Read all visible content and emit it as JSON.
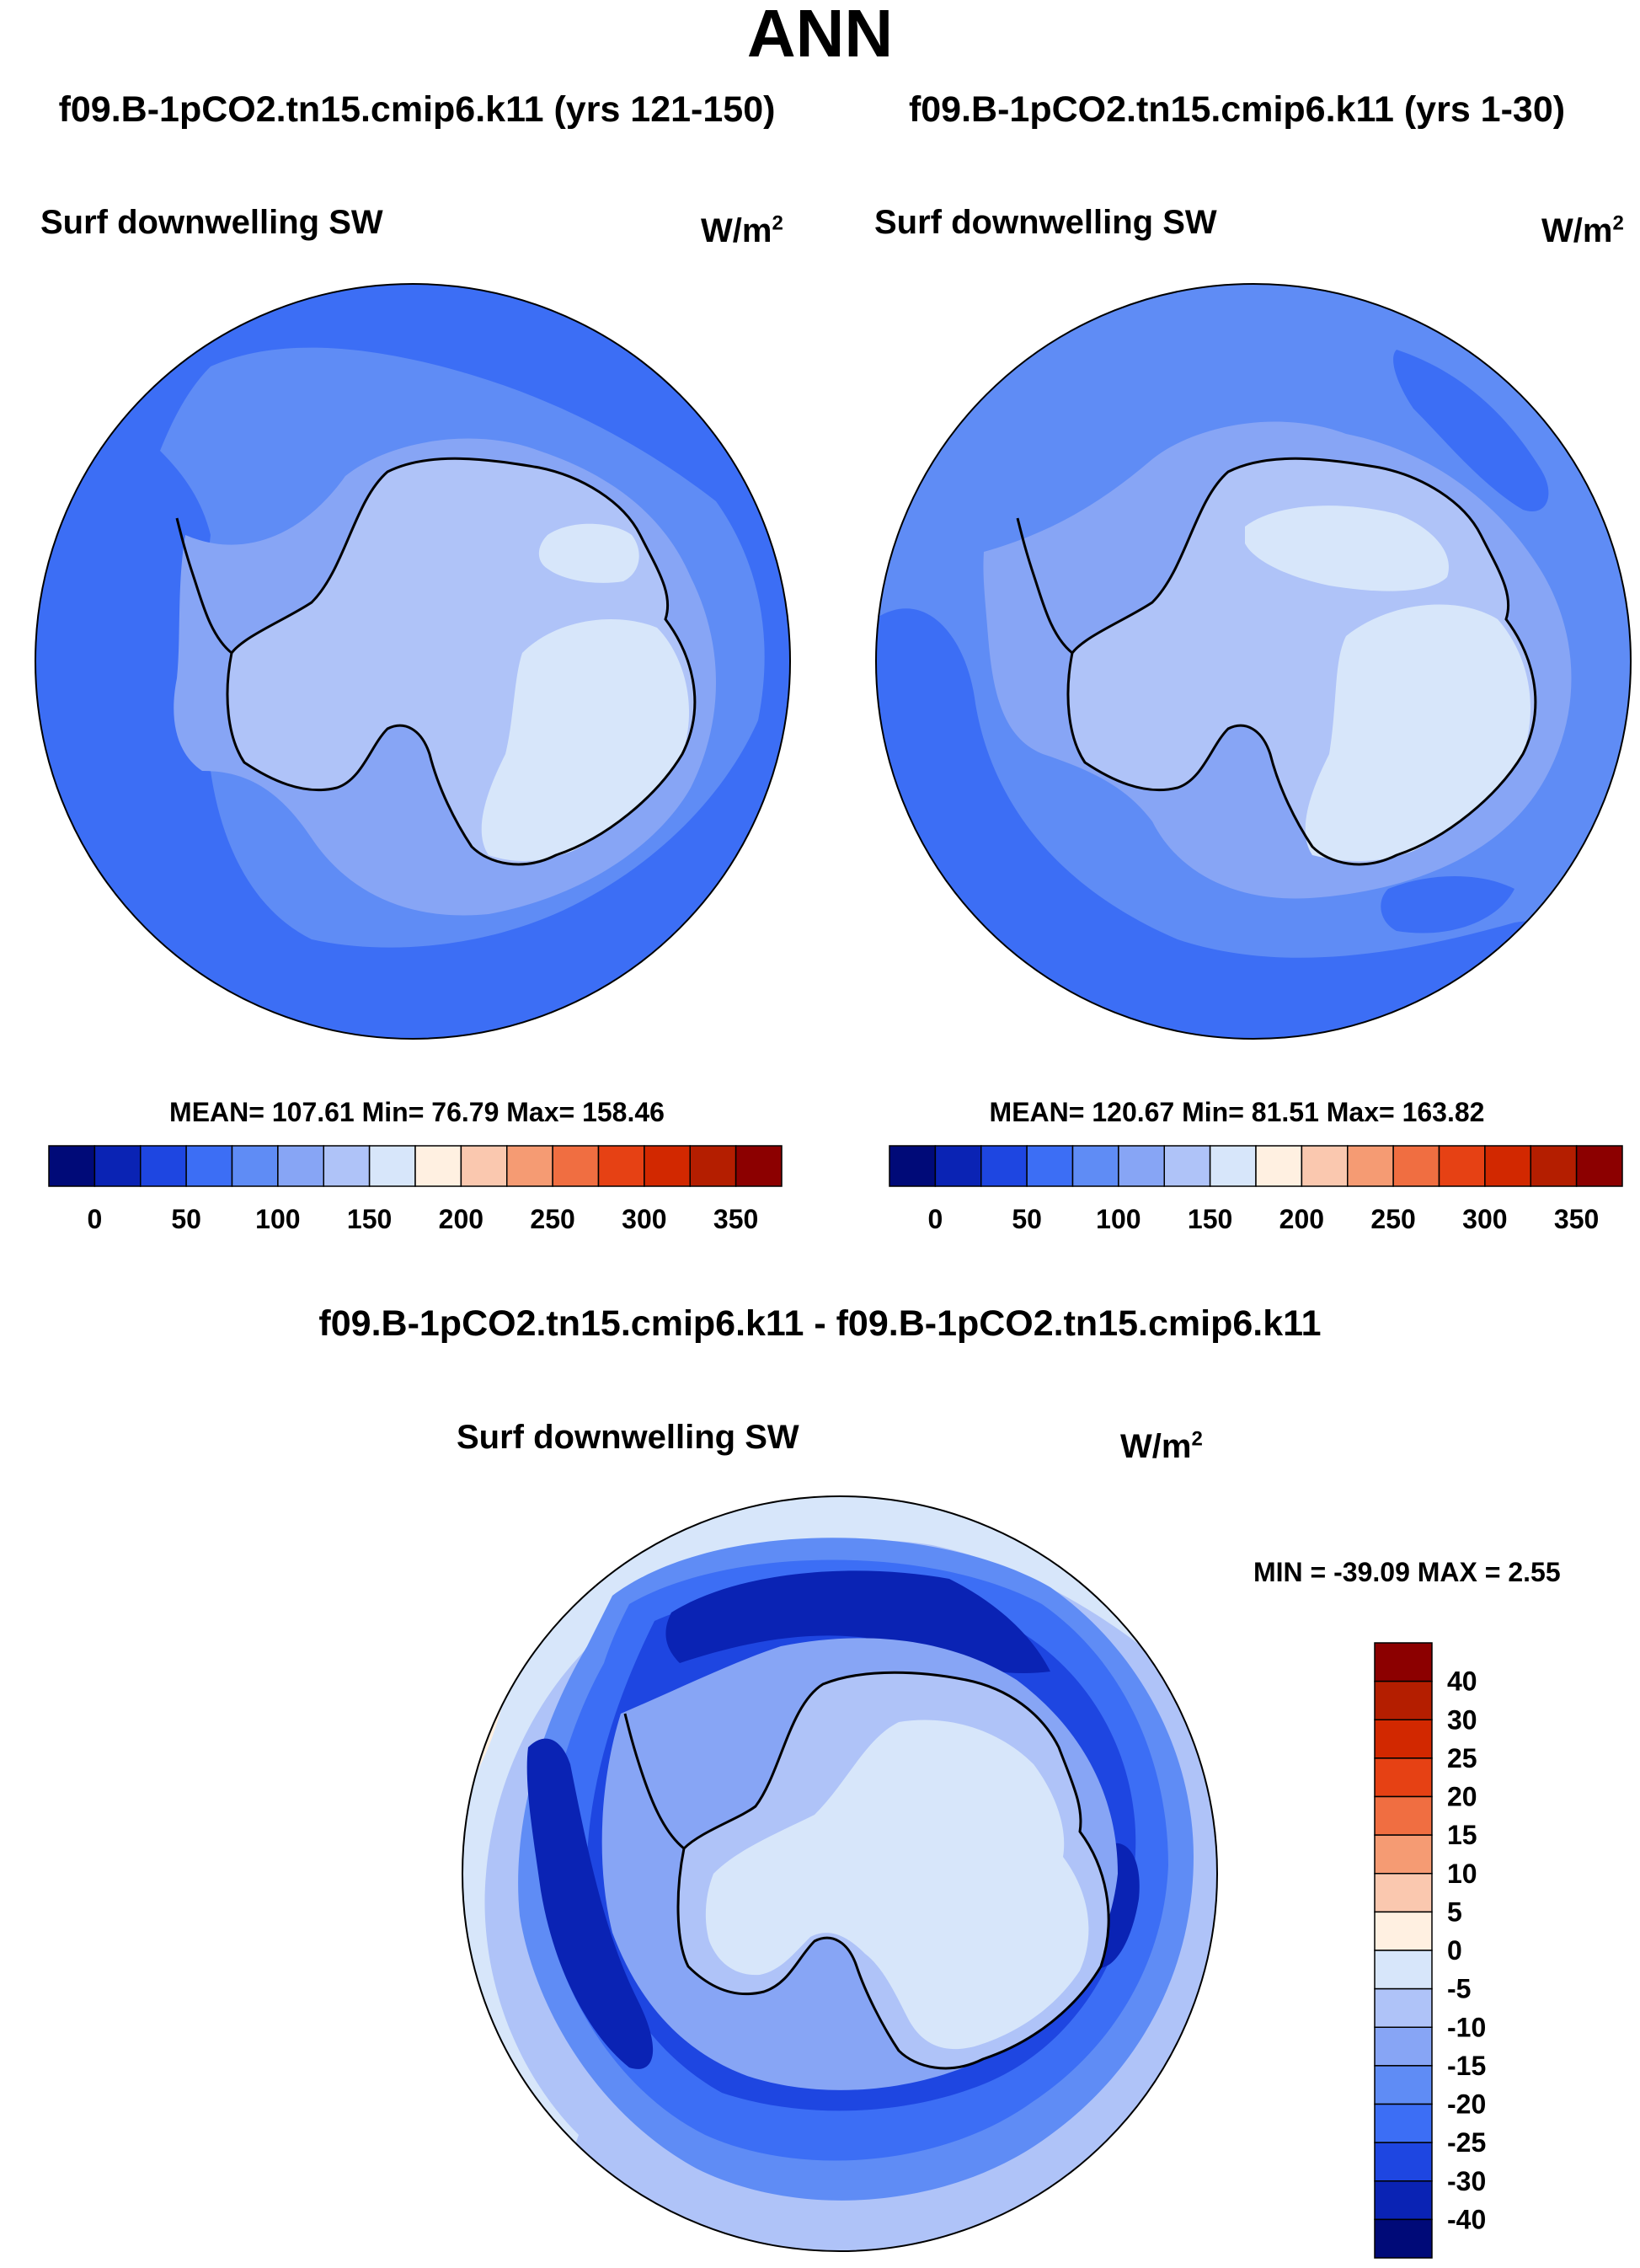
{
  "figure": {
    "title": "ANN",
    "panel_left": {
      "case_title": "f09.B-1pCO2.tn15.cmip6.k11 (yrs 121-150)",
      "variable": "Surf downwelling SW",
      "units": "W/m",
      "units_sup": "2",
      "stats": "MEAN= 107.61  Min=  76.79  Max= 158.46"
    },
    "panel_right": {
      "case_title": "f09.B-1pCO2.tn15.cmip6.k11 (yrs 1-30)",
      "variable": "Surf downwelling SW",
      "units": "W/m",
      "units_sup": "2",
      "stats": "MEAN= 120.67  Min=  81.51  Max= 163.82"
    },
    "panel_diff": {
      "case_title": "f09.B-1pCO2.tn15.cmip6.k11 - f09.B-1pCO2.tn15.cmip6.k11",
      "variable": "Surf downwelling SW",
      "units": "W/m",
      "units_sup": "2",
      "stats": "MIN = -39.09 MAX =   2.55"
    },
    "colorbar_horizontal": {
      "colors": [
        "#000a78",
        "#0a23b4",
        "#1e46e1",
        "#3c6ef5",
        "#5f8cf5",
        "#87a5f5",
        "#afc3f8",
        "#d7e6fa",
        "#fff0e1",
        "#fac8af",
        "#f59b73",
        "#f06e41",
        "#e64114",
        "#d22800",
        "#b41e00",
        "#8c0000"
      ],
      "tick_labels": [
        "0",
        "50",
        "100",
        "150",
        "200",
        "250",
        "300",
        "350"
      ]
    },
    "colorbar_vertical": {
      "colors": [
        "#8c0000",
        "#b41e00",
        "#d22800",
        "#e64114",
        "#f06e41",
        "#f59b73",
        "#fac8af",
        "#fff0e1",
        "#d7e6fa",
        "#afc3f8",
        "#87a5f5",
        "#5f8cf5",
        "#3c6ef5",
        "#1e46e1",
        "#0a23b4",
        "#000a78"
      ],
      "tick_labels": [
        "40",
        "30",
        "25",
        "20",
        "15",
        "10",
        "5",
        "0",
        "-5",
        "-10",
        "-15",
        "-20",
        "-25",
        "-30",
        "-40"
      ]
    },
    "map_colors": {
      "deep_blue": "#0a23b4",
      "blue_1": "#1e46e1",
      "blue_2": "#3c6ef5",
      "blue_3": "#5f8cf5",
      "blue_4": "#87a5f5",
      "blue_5": "#afc3f8",
      "blue_6": "#d7e6fa",
      "peach": "#fff0e1"
    }
  }
}
